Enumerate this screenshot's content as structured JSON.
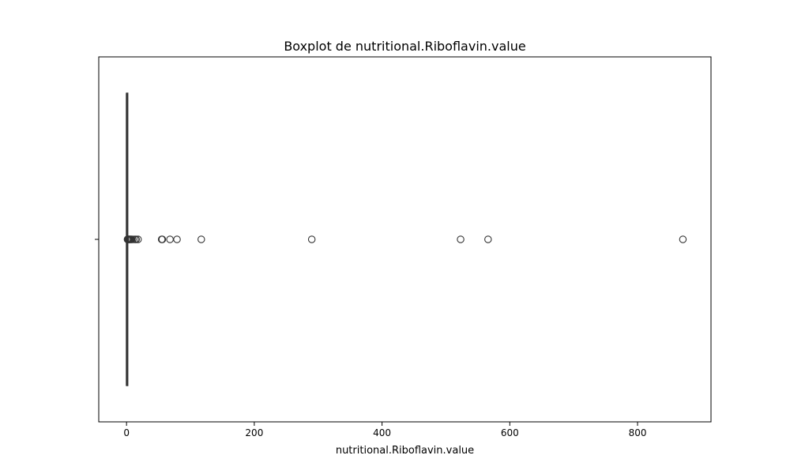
{
  "chart_data": {
    "type": "boxplot",
    "orientation": "horizontal",
    "title": "Boxplot de nutritional.Riboflavin.value",
    "xlabel": "nutritional.Riboflavin.value",
    "ylabel": "",
    "xlim": [
      -43.5,
      915
    ],
    "xticks": [
      0,
      200,
      400,
      600,
      800
    ],
    "xtick_labels": [
      "0",
      "200",
      "400",
      "600",
      "800"
    ],
    "grid": false,
    "box": {
      "whisker_low": 0,
      "q1": 0,
      "median": 0.2,
      "q3": 0.5,
      "whisker_high": 1.2,
      "color": "#333333"
    },
    "outliers": [
      1.5,
      2,
      3,
      3.5,
      4,
      5,
      6,
      7,
      8,
      10,
      13,
      15,
      18,
      55,
      56,
      68,
      79,
      117,
      290,
      523,
      566,
      871
    ]
  }
}
